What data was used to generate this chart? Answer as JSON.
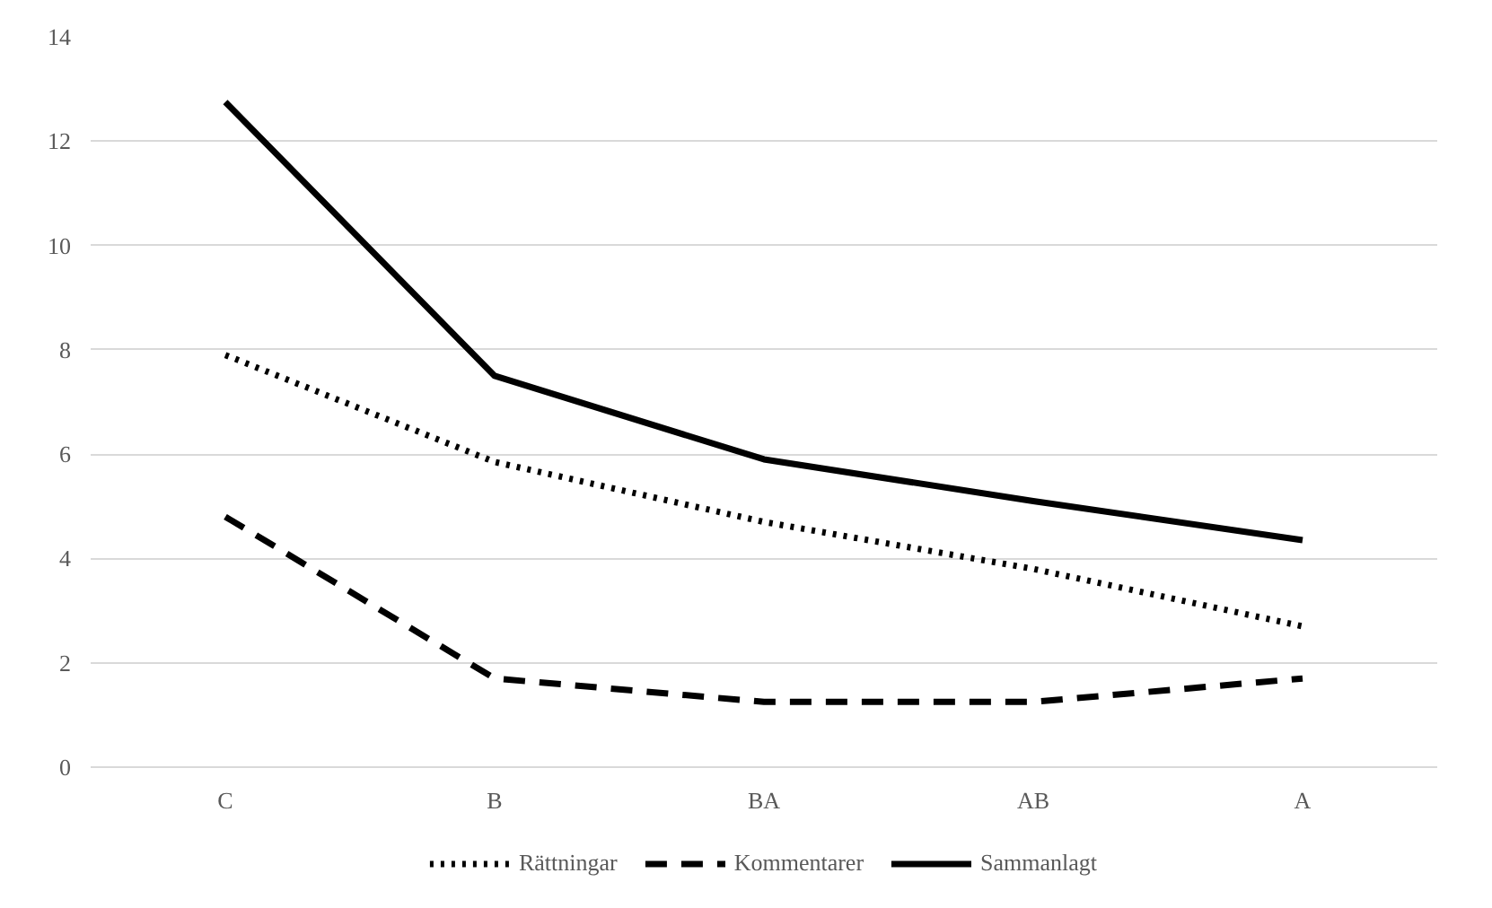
{
  "chart_data": {
    "type": "line",
    "categories": [
      "C",
      "B",
      "BA",
      "AB",
      "A"
    ],
    "series": [
      {
        "name": "Rättningar",
        "color": "#000000",
        "line_style": "dotted",
        "values": [
          7.9,
          5.85,
          4.7,
          3.8,
          2.7
        ]
      },
      {
        "name": "Kommentarer",
        "color": "#000000",
        "line_style": "dashed",
        "values": [
          4.8,
          1.7,
          1.25,
          1.25,
          1.7
        ]
      },
      {
        "name": "Sammanlagt",
        "color": "#000000",
        "line_style": "solid",
        "values": [
          12.75,
          7.5,
          5.9,
          5.1,
          4.35
        ]
      }
    ],
    "ylim": [
      0,
      14
    ],
    "yticks": [
      0,
      2,
      4,
      6,
      8,
      10,
      12,
      14
    ],
    "grid": "y",
    "legend": "bottom",
    "marker": "none"
  }
}
